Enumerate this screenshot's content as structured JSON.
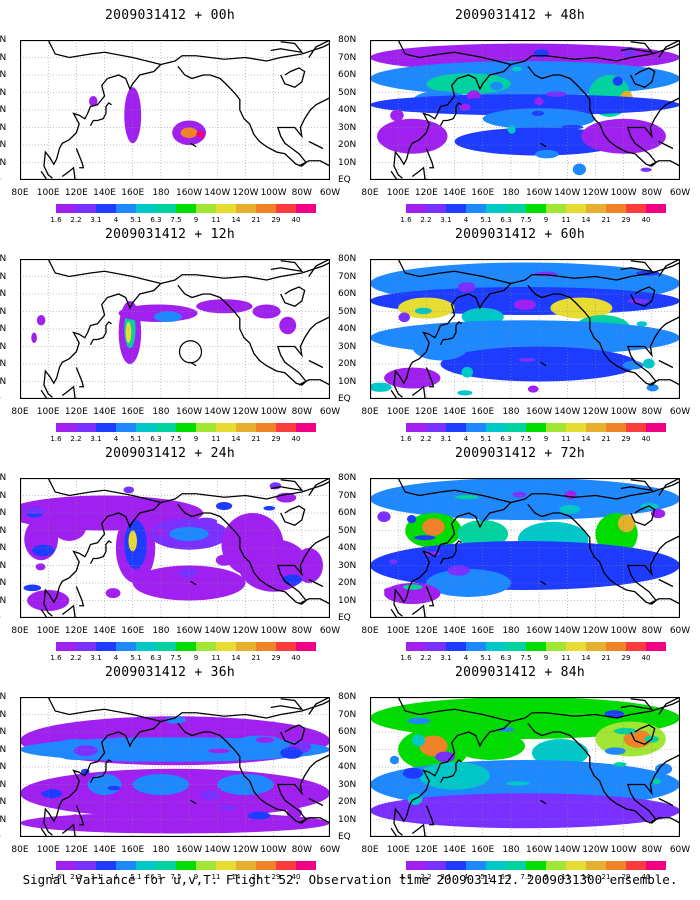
{
  "panels": [
    {
      "title": "2009031412 + 00h",
      "lead": 0
    },
    {
      "title": "2009031412 + 48h",
      "lead": 48
    },
    {
      "title": "2009031412 + 12h",
      "lead": 12
    },
    {
      "title": "2009031412 + 60h",
      "lead": 60
    },
    {
      "title": "2009031412 + 24h",
      "lead": 24
    },
    {
      "title": "2009031412 + 72h",
      "lead": 72
    },
    {
      "title": "2009031412 + 36h",
      "lead": 36
    },
    {
      "title": "2009031412 + 84h",
      "lead": 84
    }
  ],
  "lat_labels": [
    "80N",
    "70N",
    "60N",
    "50N",
    "40N",
    "30N",
    "20N",
    "10N",
    "EQ"
  ],
  "lon_labels": [
    "80E",
    "100E",
    "120E",
    "140E",
    "160E",
    "180",
    "160W",
    "140W",
    "120W",
    "100W",
    "80W",
    "60W"
  ],
  "colorbar": {
    "labels": [
      "1.6",
      "2.2",
      "3.1",
      "4",
      "5.1",
      "6.3",
      "7.5",
      "9",
      "11",
      "14",
      "21",
      "29",
      "40"
    ],
    "colors": [
      "#a020f0",
      "#7a30ff",
      "#1e3cff",
      "#1e88ff",
      "#00c8c8",
      "#00d2a0",
      "#00dc00",
      "#a0e632",
      "#e6dc32",
      "#e6af2d",
      "#f08228",
      "#fa3c3c",
      "#f00082"
    ]
  },
  "caption": "Signal Variance for u,v,T. Flight 52. Observation time 2009031412. 2009031300 ensemble."
}
